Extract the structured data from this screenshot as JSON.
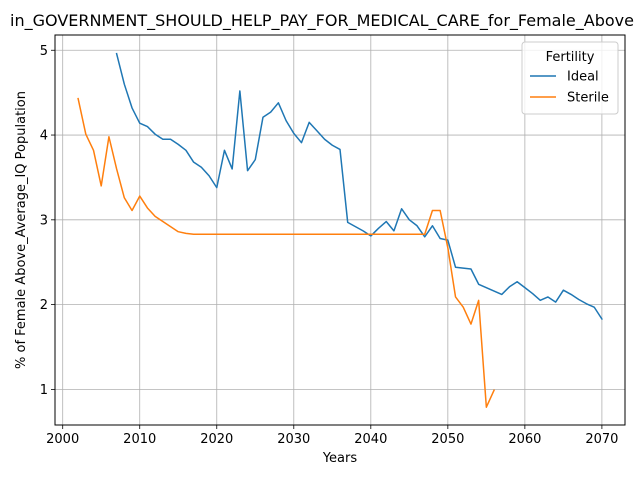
{
  "chart_data": {
    "type": "line",
    "title": "in_GOVERNMENT_SHOULD_HELP_PAY_FOR_MEDICAL_CARE_for_Female_Above",
    "xlabel": "Years",
    "ylabel": "% of Female Above_Average_IQ Population",
    "xlim": [
      1999,
      2073
    ],
    "ylim": [
      0.58,
      5.18
    ],
    "xticks": [
      2000,
      2010,
      2020,
      2030,
      2040,
      2050,
      2060,
      2070
    ],
    "yticks": [
      1,
      2,
      3,
      4,
      5
    ],
    "grid": true,
    "legend": {
      "title": "Fertility",
      "placement": "top-right"
    },
    "series": [
      {
        "name": "Ideal",
        "color": "#1f77b4",
        "x": [
          2007,
          2008,
          2009,
          2010,
          2011,
          2012,
          2013,
          2014,
          2015,
          2016,
          2017,
          2018,
          2019,
          2020,
          2021,
          2022,
          2023,
          2024,
          2025,
          2026,
          2027,
          2028,
          2029,
          2030,
          2031,
          2032,
          2033,
          2034,
          2035,
          2036,
          2037,
          2038,
          2039,
          2040,
          2041,
          2042,
          2043,
          2044,
          2045,
          2046,
          2047,
          2048,
          2049,
          2050,
          2051,
          2052,
          2053,
          2054,
          2055,
          2056,
          2057,
          2058,
          2059,
          2060,
          2061,
          2062,
          2063,
          2064,
          2065,
          2066,
          2067,
          2068,
          2069,
          2070
        ],
        "y": [
          4.96,
          4.6,
          4.32,
          4.14,
          4.1,
          4.01,
          3.95,
          3.95,
          3.89,
          3.82,
          3.68,
          3.62,
          3.52,
          3.38,
          3.82,
          3.6,
          4.52,
          3.58,
          3.71,
          4.21,
          4.27,
          4.38,
          4.17,
          4.02,
          3.91,
          4.15,
          4.05,
          3.95,
          3.88,
          3.83,
          2.97,
          2.92,
          2.87,
          2.81,
          2.9,
          2.98,
          2.87,
          3.13,
          3.0,
          2.93,
          2.8,
          2.93,
          2.78,
          2.76,
          2.44,
          2.43,
          2.42,
          2.24,
          2.2,
          2.16,
          2.12,
          2.21,
          2.27,
          2.2,
          2.13,
          2.05,
          2.09,
          2.03,
          2.17,
          2.12,
          2.06,
          2.01,
          1.97,
          1.83
        ]
      },
      {
        "name": "Sterile",
        "color": "#ff7f0e",
        "x": [
          2002,
          2003,
          2004,
          2005,
          2006,
          2007,
          2008,
          2009,
          2010,
          2011,
          2012,
          2013,
          2014,
          2015,
          2016,
          2017,
          2018,
          2019,
          2020,
          2021,
          2022,
          2023,
          2024,
          2025,
          2026,
          2027,
          2028,
          2029,
          2030,
          2031,
          2032,
          2033,
          2034,
          2035,
          2036,
          2037,
          2038,
          2039,
          2040,
          2041,
          2042,
          2043,
          2044,
          2045,
          2046,
          2047,
          2048,
          2049,
          2050,
          2051,
          2052,
          2053,
          2054,
          2055,
          2056
        ],
        "y": [
          4.43,
          4.01,
          3.82,
          3.4,
          3.98,
          3.6,
          3.26,
          3.11,
          3.28,
          3.14,
          3.04,
          2.98,
          2.92,
          2.86,
          2.84,
          2.83,
          2.83,
          2.83,
          2.83,
          2.83,
          2.83,
          2.83,
          2.83,
          2.83,
          2.83,
          2.83,
          2.83,
          2.83,
          2.83,
          2.83,
          2.83,
          2.83,
          2.83,
          2.83,
          2.83,
          2.83,
          2.83,
          2.83,
          2.83,
          2.83,
          2.83,
          2.83,
          2.83,
          2.83,
          2.83,
          2.83,
          3.11,
          3.11,
          2.67,
          2.09,
          1.97,
          1.77,
          2.05,
          0.79,
          0.99
        ]
      }
    ]
  }
}
